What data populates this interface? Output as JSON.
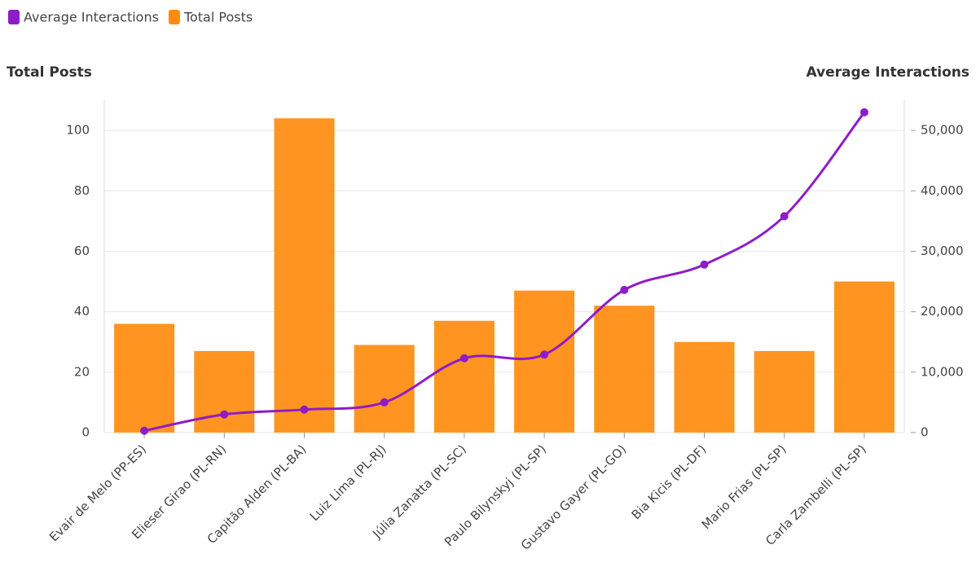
{
  "chart_data": {
    "type": "bar",
    "ylabel": "Total Posts",
    "y2label": "Average Interactions",
    "categories": [
      "Evair de Melo (PP-ES)",
      "Elieser Girao (PL-RN)",
      "Capitão Alden (PL-BA)",
      "Luiz Lima (PL-RJ)",
      "Júlia Zanatta (PL-SC)",
      "Paulo Bilynskyj (PL-SP)",
      "Gustavo Gayer (PL-GO)",
      "Bia Kicis (PL-DF)",
      "Mario Frias (PL-SP)",
      "Carla Zambelli (PL-SP)"
    ],
    "series": [
      {
        "name": "Average Interactions",
        "type": "line",
        "axis": "y2",
        "color": "#8e1cc8",
        "values": [
          300,
          3000,
          3800,
          5000,
          12300,
          12900,
          23600,
          27800,
          35800,
          53000
        ]
      },
      {
        "name": "Total Posts",
        "type": "bar",
        "axis": "y",
        "color": "#ff8c0f",
        "values": [
          36,
          27,
          104,
          29,
          37,
          47,
          42,
          30,
          27,
          50
        ]
      }
    ],
    "ylim": [
      0,
      110
    ],
    "yticks": [
      0,
      20,
      40,
      60,
      80,
      100
    ],
    "y2lim": [
      0,
      55000
    ],
    "y2ticks": [
      0,
      {
        "value": 10000,
        "label": "10,000"
      },
      {
        "value": 20000,
        "label": "20,000"
      },
      {
        "value": 30000,
        "label": "30,000"
      },
      {
        "value": 40000,
        "label": "40,000"
      },
      {
        "value": 50000,
        "label": "50,000"
      }
    ],
    "grid": true,
    "legend": "top-left"
  }
}
